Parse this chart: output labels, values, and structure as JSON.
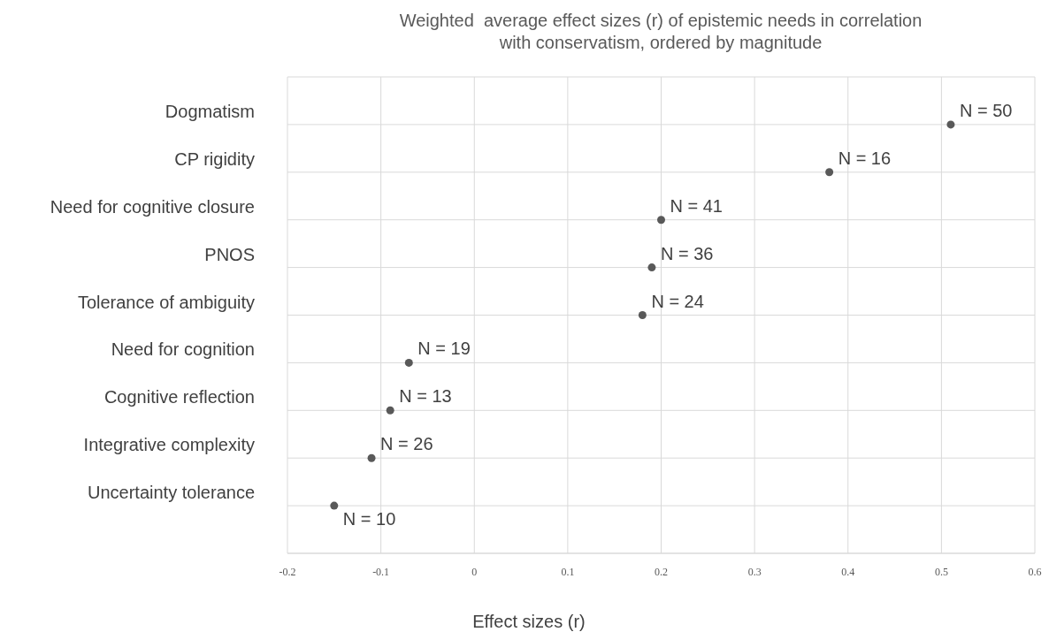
{
  "chart_data": {
    "type": "scatter",
    "orientation": "horizontal",
    "title": "Weighted  average effect sizes (r) of epistemic needs in correlation with conservatism, ordered by magnitude",
    "xlabel": "Effect sizes (r)",
    "categories": [
      "Dogmatism",
      "CP rigidity",
      "Need for cognitive closure",
      "PNOS",
      "Tolerance of ambiguity",
      "Need for cognition",
      "Cognitive reflection",
      "Integrative complexity",
      "Uncertainty tolerance"
    ],
    "series": [
      {
        "color": "#595959",
        "values": [
          0.51,
          0.38,
          0.2,
          0.19,
          0.18,
          -0.07,
          -0.09,
          -0.11,
          -0.15
        ]
      }
    ],
    "annotations": [
      {
        "text": "N = 50",
        "x": 0.51,
        "y": "Dogmatism"
      },
      {
        "text": "N = 16",
        "x": 0.38,
        "y": "CP rigidity"
      },
      {
        "text": "N = 41",
        "x": 0.2,
        "y": "Need for cognitive closure"
      },
      {
        "text": "N = 36",
        "x": 0.19,
        "y": "PNOS"
      },
      {
        "text": "N = 24",
        "x": 0.18,
        "y": "Tolerance of ambiguity"
      },
      {
        "text": "N = 19",
        "x": -0.07,
        "y": "Need for cognition"
      },
      {
        "text": "N = 13",
        "x": -0.09,
        "y": "Cognitive reflection"
      },
      {
        "text": "N = 26",
        "x": -0.11,
        "y": "Integrative complexity"
      },
      {
        "text": "N = 10",
        "x": -0.15,
        "y": "Uncertainty tolerance"
      }
    ],
    "xlim": [
      -0.2,
      0.6
    ],
    "xticks": [
      -0.2,
      -0.1,
      0,
      0.1,
      0.2,
      0.3,
      0.4,
      0.5,
      0.6
    ],
    "grid": true,
    "marker": "circle"
  }
}
